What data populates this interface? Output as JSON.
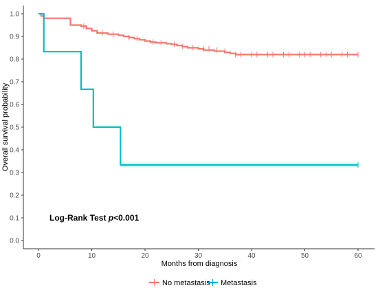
{
  "chart_data": {
    "type": "line",
    "subtype": "kaplan-meier step",
    "title": "",
    "xlabel": "Months from diagnosis",
    "ylabel": "Overall survival probability",
    "xlim": [
      0,
      60
    ],
    "ylim": [
      0,
      1.0
    ],
    "xticks": [
      0,
      10,
      20,
      30,
      40,
      50,
      60
    ],
    "yticks": [
      0.0,
      0.1,
      0.2,
      0.3,
      0.4,
      0.5,
      0.6,
      0.7,
      0.8,
      0.9,
      1.0
    ],
    "xtick_labels": [
      "0",
      "10",
      "20",
      "30",
      "40",
      "50",
      "60"
    ],
    "ytick_labels": [
      "0.0",
      "0.1",
      "0.2",
      "0.3",
      "0.4",
      "0.5",
      "0.6",
      "0.7",
      "0.8",
      "0.9",
      "1.0"
    ],
    "grid": false,
    "legend_position": "bottom",
    "annotation": {
      "prefix": "Log-Rank Test ",
      "italic": "p",
      "suffix": "<0.001"
    },
    "series": [
      {
        "name": "No metastasis",
        "color": "#f8766d",
        "x": [
          0,
          0.5,
          1,
          6,
          8,
          9,
          10,
          11,
          13,
          15,
          16,
          17,
          18,
          19,
          20,
          21,
          22,
          24,
          25,
          26,
          27,
          28,
          30,
          31,
          33,
          35,
          36,
          37,
          60
        ],
        "y": [
          1.0,
          0.99,
          0.98,
          0.95,
          0.945,
          0.935,
          0.925,
          0.915,
          0.91,
          0.905,
          0.9,
          0.895,
          0.89,
          0.885,
          0.88,
          0.875,
          0.872,
          0.868,
          0.865,
          0.86,
          0.855,
          0.85,
          0.845,
          0.84,
          0.835,
          0.83,
          0.825,
          0.82,
          0.82
        ],
        "censor_x": [
          8.5,
          12,
          14,
          17,
          18.5,
          21.5,
          23,
          25.5,
          27,
          29,
          31,
          32,
          33.5,
          35,
          37,
          38,
          40,
          41,
          43,
          44,
          46,
          47,
          49,
          50,
          51,
          53,
          54,
          55,
          57,
          58,
          60
        ],
        "censor_y": [
          0.945,
          0.915,
          0.91,
          0.895,
          0.89,
          0.875,
          0.872,
          0.865,
          0.855,
          0.85,
          0.845,
          0.845,
          0.84,
          0.835,
          0.82,
          0.82,
          0.82,
          0.82,
          0.82,
          0.82,
          0.82,
          0.82,
          0.82,
          0.82,
          0.82,
          0.82,
          0.82,
          0.82,
          0.82,
          0.82,
          0.82
        ]
      },
      {
        "name": "Metastasis",
        "color": "#00bfc4",
        "legend_color": "#00a9e0",
        "x": [
          0,
          1,
          8,
          10.3,
          15.4,
          60
        ],
        "y": [
          1.0,
          0.833,
          0.667,
          0.5,
          0.333,
          0.333
        ],
        "censor_x": [
          60
        ],
        "censor_y": [
          0.333
        ]
      }
    ]
  }
}
